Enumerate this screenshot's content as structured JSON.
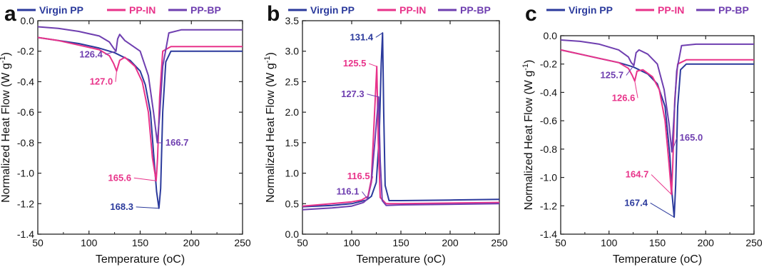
{
  "colors": {
    "virgin": "#2b3a9c",
    "in": "#e8338a",
    "bp": "#6f3fb0",
    "axis": "#222222",
    "text": "#111111"
  },
  "chart_data": [
    {
      "panel_label": "a",
      "type": "line",
      "xlabel": "Temperature (",
      "xlabel_unit": "oC",
      "xlabel_close": ")",
      "ylabel": "Normalized Heat Flow (W g",
      "ylabel_exp": "-1",
      "ylabel_close": ")",
      "xlim": [
        50,
        250
      ],
      "ylim": [
        -1.4,
        0.0
      ],
      "xticks": [
        "50",
        "100",
        "150",
        "200",
        "250"
      ],
      "yticks": [
        "0.0",
        "-0.2",
        "-0.4",
        "-0.6",
        "-0.8",
        "-1.0",
        "-1.2",
        "-1.4"
      ],
      "ytick_values": [
        0.0,
        -0.2,
        -0.4,
        -0.6,
        -0.8,
        -1.0,
        -1.2,
        -1.4
      ],
      "legend": [
        "Virgin PP",
        "PP-IN",
        "PP-BP"
      ],
      "series": [
        {
          "name": "Virgin PP",
          "key": "virgin",
          "x": [
            50,
            70,
            90,
            110,
            125,
            140,
            150,
            155,
            160,
            164,
            166,
            168.3,
            170,
            172,
            175,
            180,
            200,
            250
          ],
          "y": [
            -0.11,
            -0.13,
            -0.15,
            -0.18,
            -0.21,
            -0.26,
            -0.33,
            -0.42,
            -0.6,
            -0.95,
            -1.12,
            -1.23,
            -1.1,
            -0.6,
            -0.27,
            -0.2,
            -0.2,
            -0.2
          ]
        },
        {
          "name": "PP-IN",
          "key": "in",
          "x": [
            50,
            70,
            90,
            110,
            120,
            124,
            127.0,
            130,
            135,
            145,
            152,
            158,
            162,
            165.6,
            167,
            169,
            172,
            180,
            250
          ],
          "y": [
            -0.11,
            -0.13,
            -0.16,
            -0.19,
            -0.23,
            -0.28,
            -0.33,
            -0.26,
            -0.24,
            -0.3,
            -0.4,
            -0.6,
            -0.9,
            -1.05,
            -0.9,
            -0.5,
            -0.2,
            -0.17,
            -0.17
          ]
        },
        {
          "name": "PP-BP",
          "key": "bp",
          "x": [
            50,
            70,
            90,
            110,
            120,
            124,
            126.4,
            128,
            130,
            135,
            150,
            158,
            163,
            166.7,
            169,
            172,
            178,
            190,
            250
          ],
          "y": [
            -0.04,
            -0.05,
            -0.07,
            -0.1,
            -0.14,
            -0.18,
            -0.2,
            -0.12,
            -0.09,
            -0.13,
            -0.2,
            -0.36,
            -0.6,
            -0.8,
            -0.62,
            -0.3,
            -0.08,
            -0.06,
            -0.06
          ]
        }
      ],
      "annotations": [
        {
          "text": "126.4",
          "key": "bp",
          "x": 126.4,
          "y": -0.2,
          "lx": 102,
          "ly": -0.24
        },
        {
          "text": "127.0",
          "key": "in",
          "x": 127.0,
          "y": -0.33,
          "lx": 112,
          "ly": -0.42
        },
        {
          "text": "166.7",
          "key": "bp",
          "x": 166.7,
          "y": -0.8,
          "lx": 186,
          "ly": -0.82
        },
        {
          "text": "165.6",
          "key": "in",
          "x": 165.6,
          "y": -1.05,
          "lx": 130,
          "ly": -1.05
        },
        {
          "text": "168.3",
          "key": "virgin",
          "x": 168.3,
          "y": -1.23,
          "lx": 132,
          "ly": -1.24
        }
      ]
    },
    {
      "panel_label": "b",
      "type": "line",
      "xlabel": "Temperature (",
      "xlabel_unit": "oC",
      "xlabel_close": ")",
      "ylabel": "Normalized Heat Flow (W g",
      "ylabel_exp": "-1",
      "ylabel_close": ")",
      "xlim": [
        50,
        250
      ],
      "ylim": [
        0.0,
        3.5
      ],
      "xticks": [
        "50",
        "100",
        "150",
        "200",
        "250"
      ],
      "yticks": [
        "0.0",
        "0.5",
        "1.0",
        "1.5",
        "2.0",
        "2.5",
        "3.0",
        "3.5"
      ],
      "ytick_values": [
        0.0,
        0.5,
        1.0,
        1.5,
        2.0,
        2.5,
        3.0,
        3.5
      ],
      "legend": [
        "Virgin PP",
        "PP-IN",
        "PP-BP"
      ],
      "series": [
        {
          "name": "Virgin PP",
          "key": "virgin",
          "x": [
            50,
            80,
            100,
            115,
            120,
            125,
            128,
            130,
            131.4,
            132.5,
            134,
            138,
            150,
            200,
            250
          ],
          "y": [
            0.45,
            0.47,
            0.5,
            0.56,
            0.62,
            0.85,
            1.6,
            2.8,
            3.3,
            2.0,
            0.8,
            0.55,
            0.55,
            0.56,
            0.57
          ]
        },
        {
          "name": "PP-IN",
          "key": "in",
          "x": [
            50,
            80,
            100,
            110,
            116.5,
            120,
            123,
            125.5,
            127,
            129,
            135,
            150,
            250
          ],
          "y": [
            0.46,
            0.5,
            0.53,
            0.56,
            0.62,
            0.9,
            1.9,
            2.75,
            1.5,
            0.6,
            0.5,
            0.5,
            0.52
          ]
        },
        {
          "name": "PP-BP",
          "key": "bp",
          "x": [
            50,
            80,
            100,
            112,
            116.1,
            120,
            124,
            127.3,
            129,
            131,
            135,
            150,
            250
          ],
          "y": [
            0.4,
            0.43,
            0.46,
            0.52,
            0.58,
            0.85,
            1.6,
            2.25,
            1.2,
            0.55,
            0.47,
            0.48,
            0.5
          ]
        }
      ],
      "annotations": [
        {
          "text": "131.4",
          "key": "virgin",
          "x": 131.4,
          "y": 3.3,
          "lx": 110,
          "ly": 3.18
        },
        {
          "text": "125.5",
          "key": "in",
          "x": 125.5,
          "y": 2.75,
          "lx": 103,
          "ly": 2.75
        },
        {
          "text": "127.3",
          "key": "bp",
          "x": 127.3,
          "y": 2.25,
          "lx": 101,
          "ly": 2.25
        },
        {
          "text": "116.5",
          "key": "in",
          "x": 116.5,
          "y": 0.62,
          "lx": 107,
          "ly": 0.9
        },
        {
          "text": "116.1",
          "key": "bp",
          "x": 116.1,
          "y": 0.58,
          "lx": 96,
          "ly": 0.65
        }
      ]
    },
    {
      "panel_label": "c",
      "type": "line",
      "xlabel": "Temperature (",
      "xlabel_unit": "oC",
      "xlabel_close": ")",
      "ylabel": "Normalized Heat Flow (W g",
      "ylabel_exp": "-1",
      "ylabel_close": ")",
      "xlim": [
        50,
        250
      ],
      "ylim": [
        -1.4,
        0.0
      ],
      "xticks": [
        "50",
        "100",
        "150",
        "200",
        "250"
      ],
      "yticks": [
        "0.0",
        "-0.2",
        "-0.4",
        "-0.6",
        "-0.8",
        "-1.0",
        "-1.2",
        "-1.4"
      ],
      "ytick_values": [
        0.0,
        -0.2,
        -0.4,
        -0.6,
        -0.8,
        -1.0,
        -1.2,
        -1.4
      ],
      "legend": [
        "Virgin PP",
        "PP-IN",
        "PP-BP"
      ],
      "series": [
        {
          "name": "Virgin PP",
          "key": "virgin",
          "x": [
            50,
            70,
            90,
            110,
            125,
            140,
            150,
            158,
            163,
            165,
            167.4,
            169,
            171,
            174,
            180,
            200,
            250
          ],
          "y": [
            -0.1,
            -0.13,
            -0.16,
            -0.19,
            -0.22,
            -0.27,
            -0.34,
            -0.5,
            -0.85,
            -1.1,
            -1.28,
            -1.05,
            -0.5,
            -0.24,
            -0.2,
            -0.2,
            -0.2
          ]
        },
        {
          "name": "PP-IN",
          "key": "in",
          "x": [
            50,
            70,
            90,
            110,
            120,
            124,
            126.6,
            129,
            135,
            145,
            152,
            158,
            162,
            164.7,
            166,
            168,
            171,
            180,
            250
          ],
          "y": [
            -0.1,
            -0.13,
            -0.16,
            -0.19,
            -0.23,
            -0.28,
            -0.32,
            -0.25,
            -0.24,
            -0.29,
            -0.38,
            -0.6,
            -0.9,
            -1.12,
            -0.9,
            -0.45,
            -0.2,
            -0.17,
            -0.17
          ]
        },
        {
          "name": "PP-BP",
          "key": "bp",
          "x": [
            50,
            70,
            90,
            110,
            120,
            123,
            125.7,
            128,
            131,
            140,
            150,
            157,
            162,
            165.0,
            167,
            170,
            175,
            190,
            250
          ],
          "y": [
            -0.03,
            -0.04,
            -0.06,
            -0.1,
            -0.15,
            -0.19,
            -0.21,
            -0.12,
            -0.1,
            -0.13,
            -0.2,
            -0.38,
            -0.62,
            -0.82,
            -0.6,
            -0.25,
            -0.07,
            -0.06,
            -0.06
          ]
        }
      ],
      "annotations": [
        {
          "text": "125.7",
          "key": "bp",
          "x": 125.7,
          "y": -0.21,
          "lx": 103,
          "ly": -0.3
        },
        {
          "text": "126.6",
          "key": "in",
          "x": 126.6,
          "y": -0.32,
          "lx": 115,
          "ly": -0.46
        },
        {
          "text": "165.0",
          "key": "bp",
          "x": 165.0,
          "y": -0.82,
          "lx": 185,
          "ly": -0.74
        },
        {
          "text": "164.7",
          "key": "in",
          "x": 164.7,
          "y": -1.12,
          "lx": 129,
          "ly": -1.0
        },
        {
          "text": "167.4",
          "key": "virgin",
          "x": 167.4,
          "y": -1.28,
          "lx": 128,
          "ly": -1.2
        }
      ]
    }
  ]
}
